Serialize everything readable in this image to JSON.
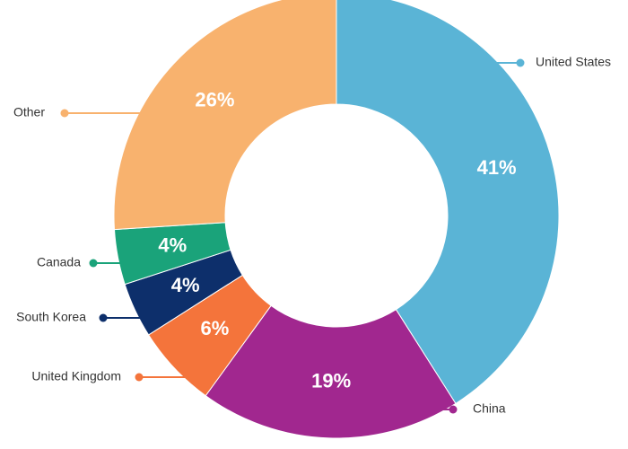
{
  "chart_data": {
    "type": "donut",
    "categories": [
      "United States",
      "China",
      "United Kingdom",
      "South Korea",
      "Canada",
      "Other"
    ],
    "values": [
      41,
      19,
      6,
      4,
      4,
      26
    ],
    "value_labels": [
      "41%",
      "19%",
      "6%",
      "4%",
      "4%",
      "26%"
    ],
    "colors": [
      "#5ab4d6",
      "#a1278f",
      "#f4743b",
      "#0d2f6b",
      "#1aa37a",
      "#f8b26e"
    ]
  }
}
